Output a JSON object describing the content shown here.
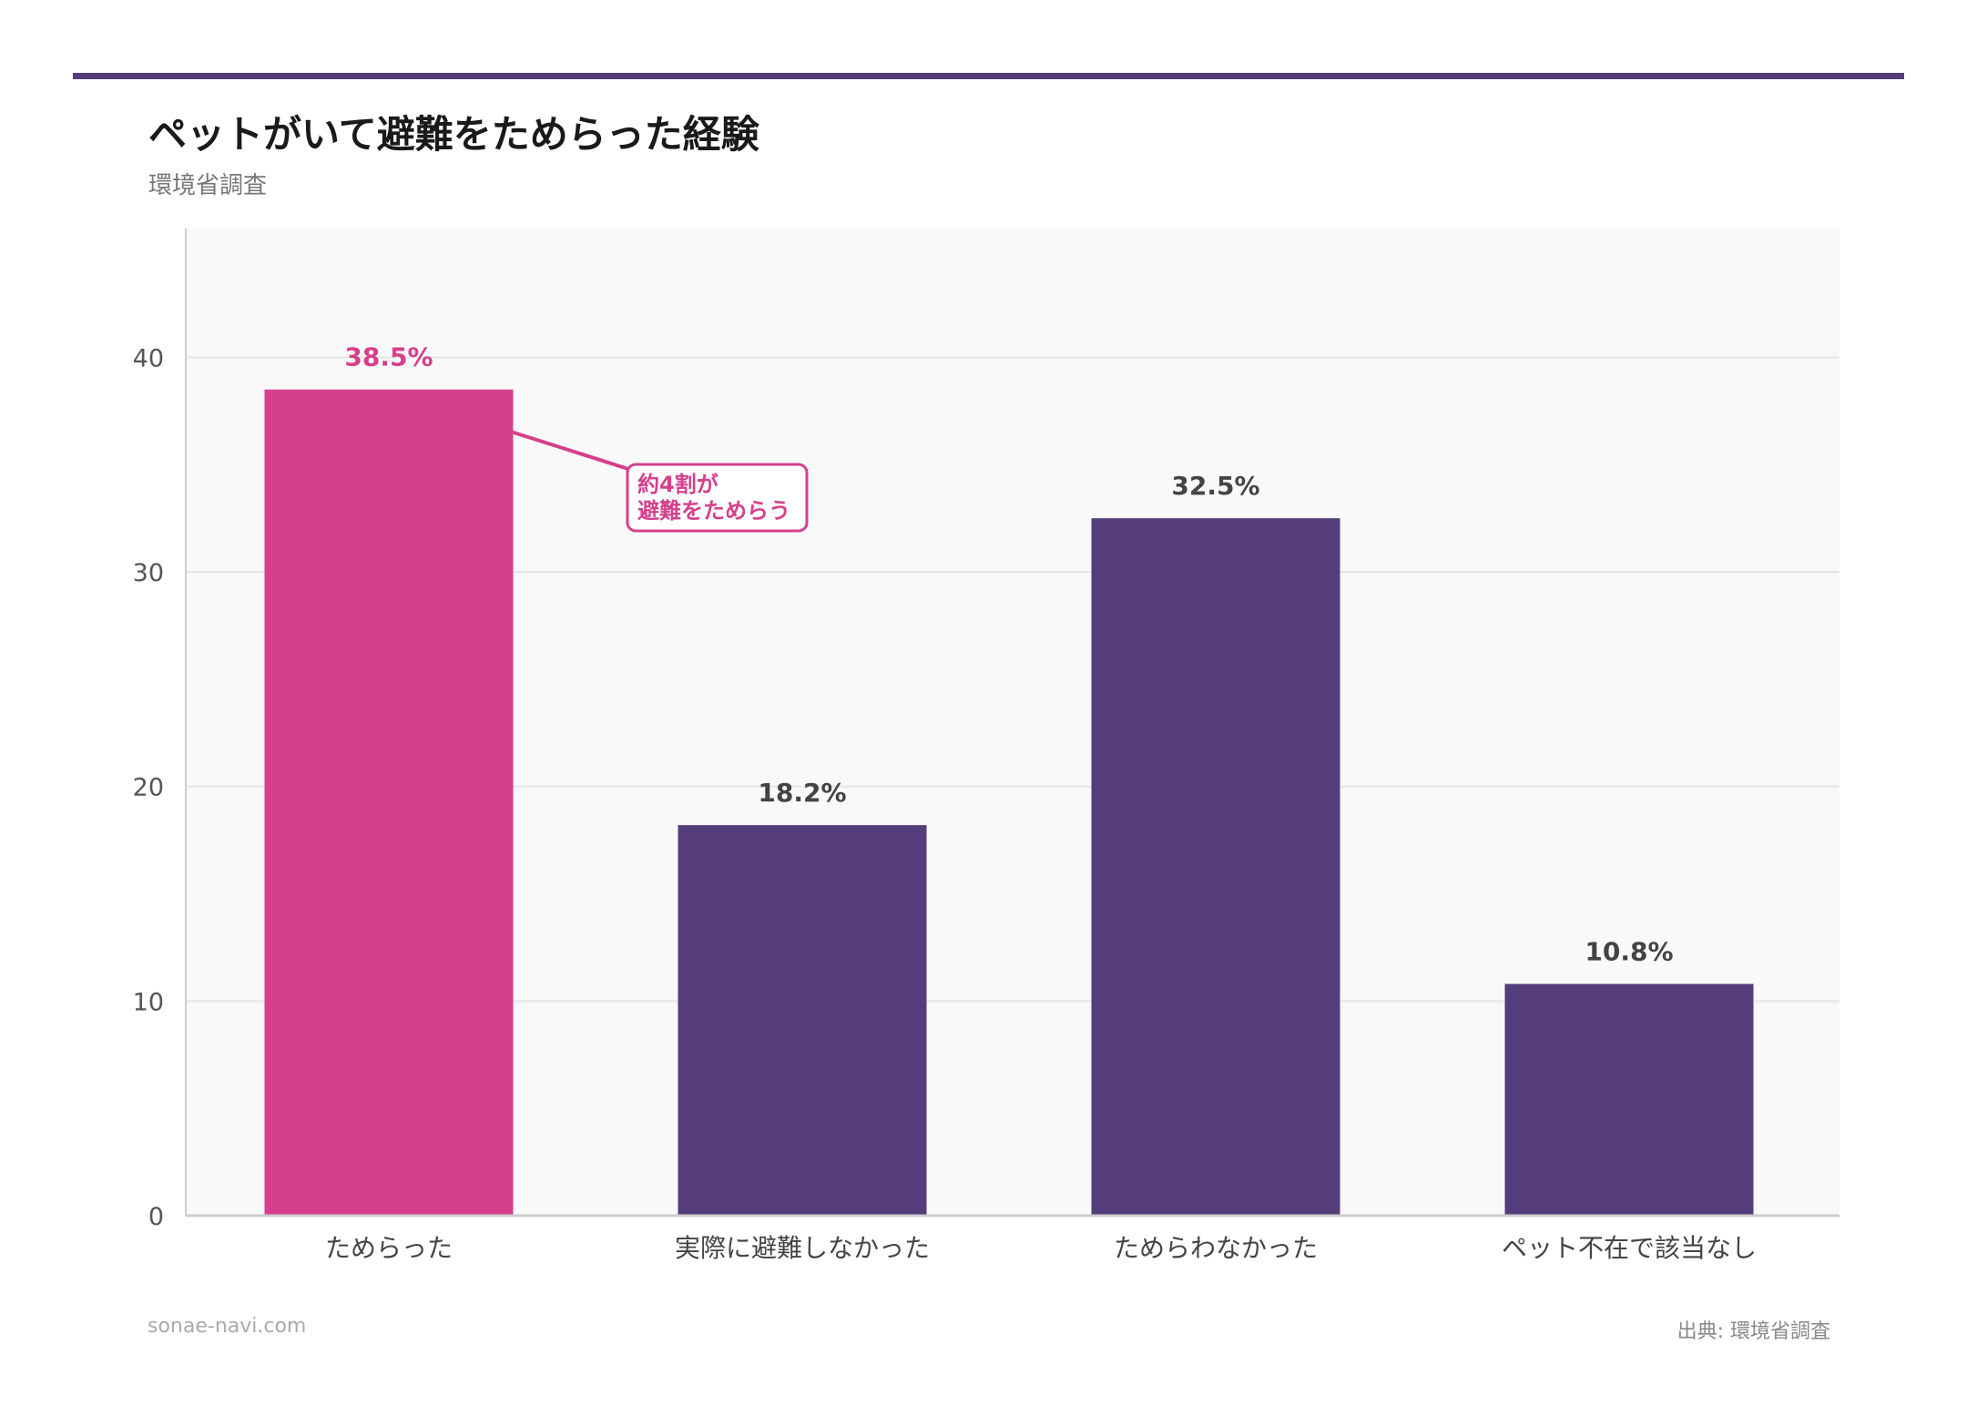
{
  "title": "ペットがいて避難をためらった経験",
  "subtitle": "環境省調査",
  "footer": {
    "site": "sonae-navi.com",
    "source": "出典: 環境省調査"
  },
  "colors": {
    "highlight": "#d63f8c",
    "default": "#553c7b",
    "accent_bar": "#553c7b",
    "plot_bg": "#f9f9f9"
  },
  "chart_data": {
    "type": "bar",
    "categories": [
      "ためらった",
      "実際に避難しなかった",
      "ためらわなかった",
      "ペット不在で該当なし"
    ],
    "values": [
      38.5,
      18.2,
      32.5,
      10.8
    ],
    "data_labels": [
      "38.5%",
      "18.2%",
      "32.5%",
      "10.8%"
    ],
    "highlight_index": 0,
    "ylim": [
      0,
      46
    ],
    "yticks": [
      0,
      10,
      20,
      30,
      40
    ],
    "grid": true,
    "xlabel": "",
    "ylabel": "",
    "annotation": {
      "text_line1": "約4割が",
      "text_line2": "避難をためらう",
      "target_category": "ためらった"
    }
  }
}
